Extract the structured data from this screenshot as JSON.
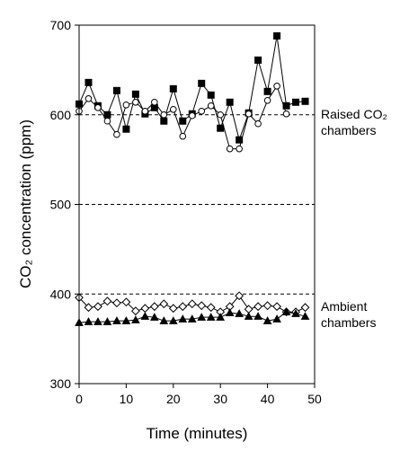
{
  "chart_data": {
    "type": "scatter",
    "xlabel": "Time (minutes)",
    "ylabel": "CO₂ concentration (ppm)",
    "xlim": [
      0,
      50
    ],
    "ylim": [
      300,
      700
    ],
    "xticks": [
      0,
      10,
      20,
      30,
      40,
      50
    ],
    "yticks": [
      300,
      400,
      500,
      600,
      700
    ],
    "reference_lines": [
      {
        "y": 400,
        "style": "dashed"
      },
      {
        "y": 500,
        "style": "dashed"
      },
      {
        "y": 600,
        "style": "dashed"
      }
    ],
    "annotations": [
      {
        "text": "Raised CO₂",
        "line": 1,
        "near_y": 600
      },
      {
        "text": "chambers",
        "line": 2,
        "near_y": 600
      },
      {
        "text": "Ambient",
        "line": 1,
        "near_y": 400
      },
      {
        "text": "chambers",
        "line": 2,
        "near_y": 400
      }
    ],
    "series": [
      {
        "marker": "square",
        "filled": true,
        "color": "#000000",
        "x": [
          0,
          2,
          4,
          6,
          8,
          10,
          12,
          14,
          16,
          18,
          20,
          22,
          24,
          26,
          28,
          30,
          32,
          34,
          36,
          38,
          40,
          42,
          44,
          46,
          48
        ],
        "y": [
          612,
          636,
          610,
          600,
          627,
          584,
          623,
          601,
          608,
          593,
          629,
          593,
          601,
          635,
          622,
          585,
          614,
          572,
          602,
          661,
          626,
          688,
          610,
          614,
          615
        ]
      },
      {
        "marker": "circle",
        "filled": false,
        "color": "#000000",
        "x": [
          0,
          2,
          4,
          6,
          8,
          10,
          12,
          14,
          16,
          18,
          20,
          22,
          24,
          26,
          28,
          30,
          32,
          34,
          36,
          38,
          40,
          42,
          44
        ],
        "y": [
          604,
          618,
          608,
          593,
          578,
          611,
          614,
          604,
          614,
          600,
          606,
          576,
          599,
          604,
          610,
          600,
          562,
          562,
          601,
          590,
          616,
          632,
          601
        ]
      },
      {
        "marker": "diamond",
        "filled": false,
        "color": "#000000",
        "x": [
          0,
          2,
          4,
          6,
          8,
          10,
          12,
          14,
          16,
          18,
          20,
          22,
          24,
          26,
          28,
          30,
          32,
          34,
          36,
          38,
          40,
          42,
          44,
          46,
          48
        ],
        "y": [
          396,
          385,
          386,
          392,
          390,
          391,
          381,
          384,
          386,
          389,
          384,
          386,
          389,
          387,
          385,
          380,
          386,
          398,
          383,
          386,
          387,
          386,
          380,
          380,
          385
        ]
      },
      {
        "marker": "triangle",
        "filled": true,
        "color": "#000000",
        "x": [
          0,
          2,
          4,
          6,
          8,
          10,
          12,
          14,
          16,
          18,
          20,
          22,
          24,
          26,
          28,
          30,
          32,
          34,
          36,
          38,
          40,
          42,
          44,
          46,
          48
        ],
        "y": [
          368,
          369,
          369,
          369,
          370,
          370,
          371,
          375,
          374,
          370,
          370,
          372,
          372,
          374,
          374,
          374,
          379,
          378,
          375,
          375,
          370,
          372,
          380,
          378,
          375
        ]
      }
    ]
  }
}
